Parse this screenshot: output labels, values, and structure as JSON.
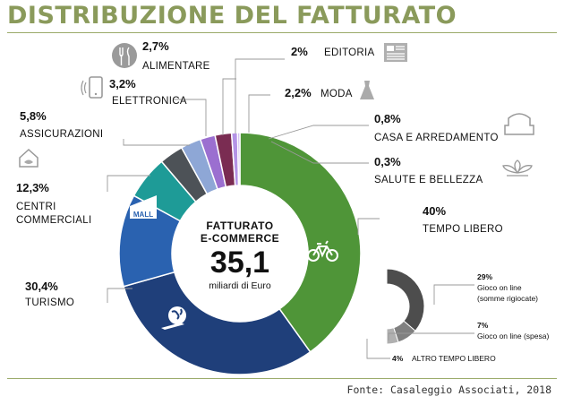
{
  "title": "DISTRIBUZIONE DEL FATTURATO",
  "source": "Fonte: Casaleggio Associati, 2018",
  "center": {
    "title_line1": "FATTURATO",
    "title_line2": "E-COMMERCE",
    "value": "35,1",
    "unit": "miliardi di Euro"
  },
  "chart_data": [
    {
      "type": "pie",
      "title": "DISTRIBUZIONE DEL FATTURATO",
      "total": 35.1,
      "total_unit": "miliardi di Euro",
      "slices": [
        {
          "label": "TEMPO LIBERO",
          "value": 40.0,
          "value_label": "40%",
          "color": "#4f9538",
          "icon": "bicycle-icon"
        },
        {
          "label": "TURISMO",
          "value": 30.4,
          "value_label": "30,4%",
          "color": "#1f3f7a",
          "icon": "globe-plane-icon"
        },
        {
          "label": "CENTRI COMMERCIALI",
          "value": 12.3,
          "value_label": "12,3%",
          "color": "#2a62b0",
          "icon": "mall-icon",
          "icon_text": "MALL"
        },
        {
          "label": "ASSICURAZIONI",
          "value": 5.8,
          "value_label": "5,8%",
          "color": "#1e9b97",
          "icon": "house-shield-icon"
        },
        {
          "label": "ELETTRONICA",
          "value": 3.2,
          "value_label": "3,2%",
          "color": "#4d5257",
          "icon": "smartphone-icon"
        },
        {
          "label": "ALIMENTARE",
          "value": 2.7,
          "value_label": "2,7%",
          "color": "#8ea7d6",
          "icon": "fork-knife-icon"
        },
        {
          "label": "EDITORIA",
          "value": 2.0,
          "value_label": "2%",
          "color": "#9b6fd0",
          "icon": "newspaper-icon"
        },
        {
          "label": "MODA",
          "value": 2.2,
          "value_label": "2,2%",
          "color": "#7a2c52",
          "icon": "dress-icon"
        },
        {
          "label": "CASA E ARREDAMENTO",
          "value": 0.8,
          "value_label": "0,8%",
          "color": "#b493e6",
          "icon": "armchair-icon"
        },
        {
          "label": "SALUTE E BELLEZZA",
          "value": 0.3,
          "value_label": "0,3%",
          "color": "#c4a9ee",
          "icon": "lotus-icon"
        }
      ]
    },
    {
      "type": "pie",
      "parent": "TEMPO LIBERO",
      "slices": [
        {
          "label": "Gioco on line (somme rigiocate)",
          "value": 29,
          "value_label": "29%",
          "color": "#4d4d4d"
        },
        {
          "label": "Gioco on line (spesa)",
          "value": 7,
          "value_label": "7%",
          "color": "#808080"
        },
        {
          "label": "ALTRO TEMPO LIBERO",
          "value": 4,
          "value_label": "4%",
          "color": "#b0b0b0"
        }
      ]
    }
  ],
  "labels": {
    "alimentare": {
      "pct": "2,7%",
      "name": "ALIMENTARE"
    },
    "editoria": {
      "pct": "2%",
      "name": "EDITORIA"
    },
    "elettronica": {
      "pct": "3,2%",
      "name": "ELETTRONICA"
    },
    "moda": {
      "pct": "2,2%",
      "name": "MODA"
    },
    "assicurazioni": {
      "pct": "5,8%",
      "name": "ASSICURAZIONI"
    },
    "casa": {
      "pct": "0,8%",
      "name": "CASA E ARREDAMENTO"
    },
    "salute": {
      "pct": "0,3%",
      "name": "SALUTE E BELLEZZA"
    },
    "centri": {
      "pct": "12,3%",
      "name1": "CENTRI",
      "name2": "COMMERCIALI"
    },
    "tempo": {
      "pct": "40%",
      "name": "TEMPO LIBERO"
    },
    "turismo": {
      "pct": "30,4%",
      "name": "TURISMO"
    },
    "gioco_rig": {
      "pct": "29%",
      "name1": "Gioco on line",
      "name2": "(somme rigiocate)"
    },
    "gioco_spesa": {
      "pct": "7%",
      "name": "Gioco on line (spesa)"
    },
    "altro": {
      "pct": "4%",
      "name": "ALTRO TEMPO LIBERO"
    }
  },
  "icons": {
    "mall_text": "MALL"
  }
}
